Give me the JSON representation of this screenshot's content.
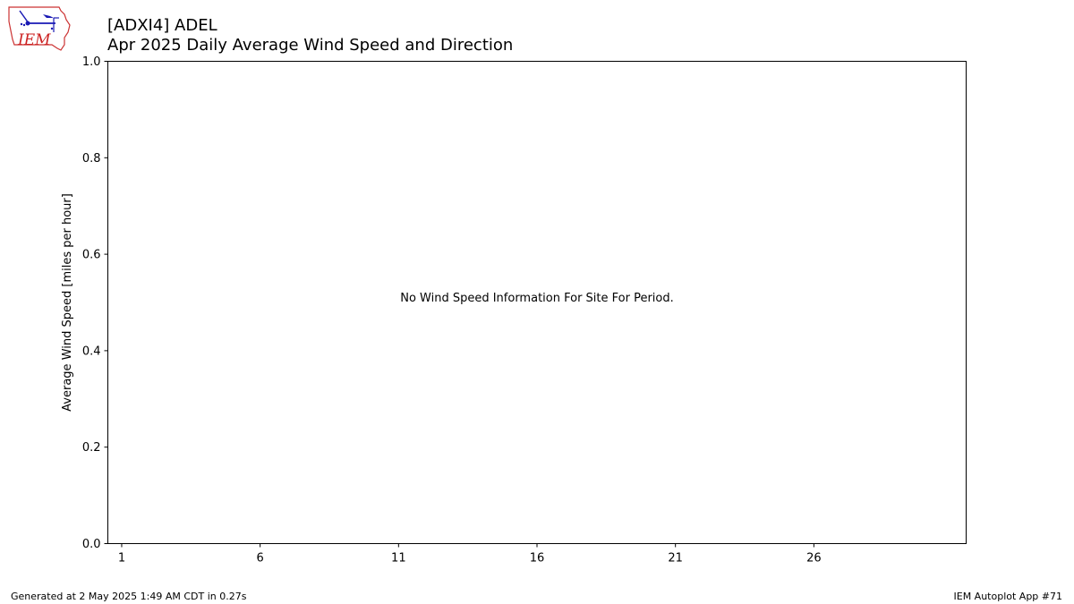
{
  "header": {
    "title_line1": "[ADXI4] ADEL",
    "title_line2": "Apr 2025 Daily Average Wind Speed and Direction"
  },
  "logo": {
    "text": "IEM",
    "icon": "iem-iowa-logo-icon",
    "color": "#cc2222",
    "accent": "#1a1ab4"
  },
  "chart_data": {
    "type": "bar",
    "title": "Apr 2025 Daily Average Wind Speed and Direction",
    "ylabel": "Average Wind Speed [miles per hour]",
    "xlabel": "",
    "ylim": [
      0,
      1
    ],
    "xlim": [
      0.5,
      31.5
    ],
    "yticks": [
      0.0,
      0.2,
      0.4,
      0.6,
      0.8,
      1.0
    ],
    "ytick_labels": [
      "0.0",
      "0.2",
      "0.4",
      "0.6",
      "0.8",
      "1.0"
    ],
    "xticks": [
      1,
      6,
      11,
      16,
      21,
      26
    ],
    "xtick_labels": [
      "1",
      "6",
      "11",
      "16",
      "21",
      "26"
    ],
    "series": [],
    "annotation": "No Wind Speed Information For Site For Period.",
    "grid": false
  },
  "footer": {
    "left": "Generated at 2 May 2025 1:49 AM CDT in 0.27s",
    "right": "IEM Autoplot App #71"
  }
}
